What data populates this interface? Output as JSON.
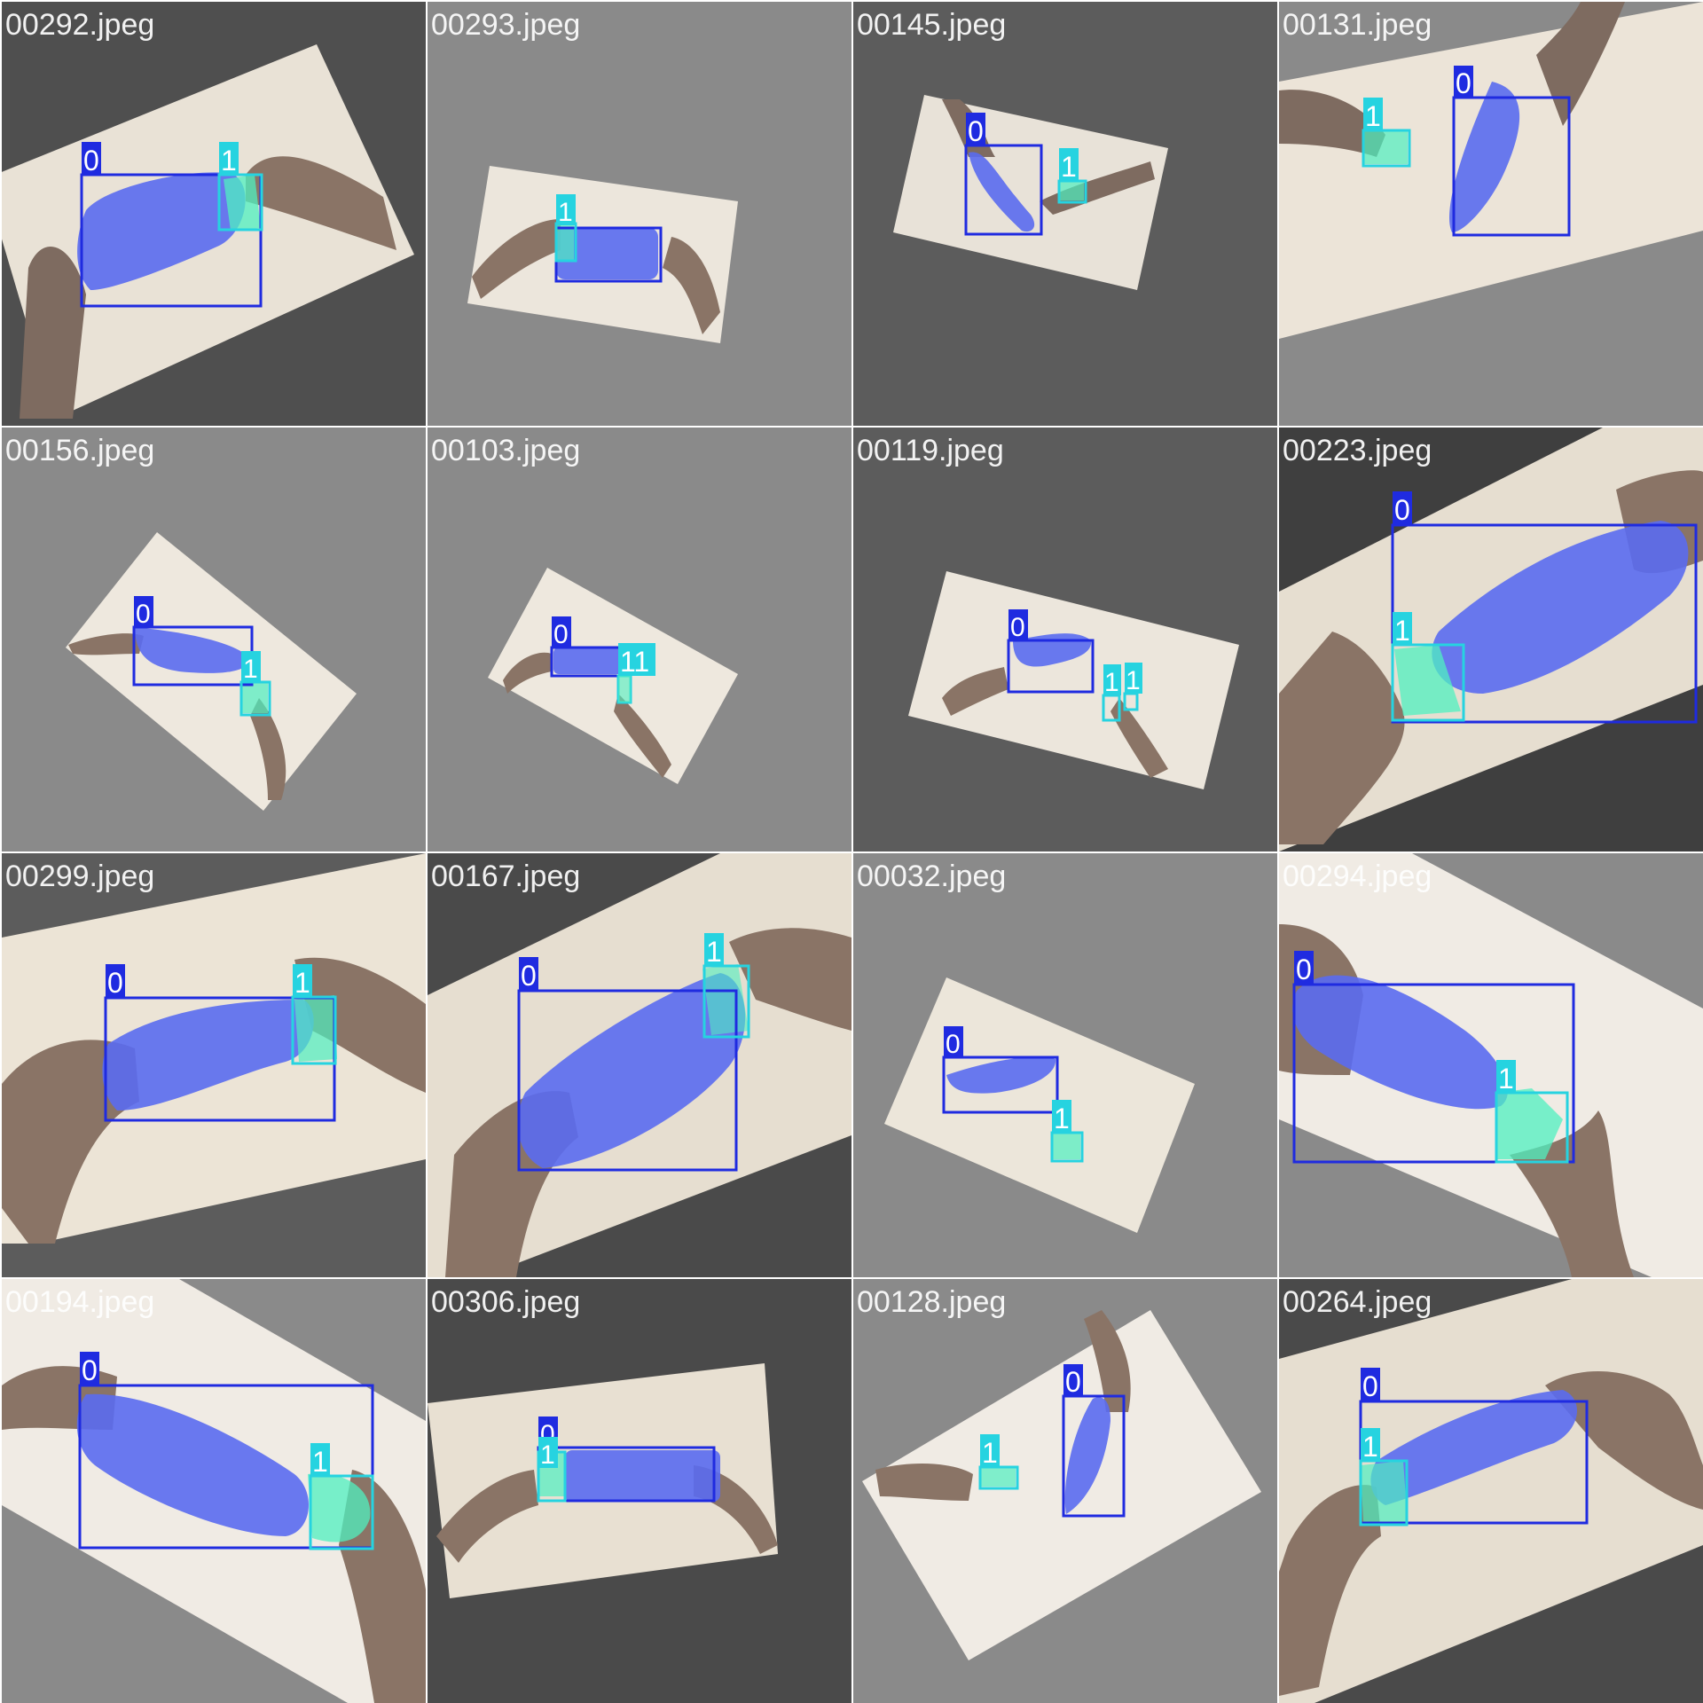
{
  "colors": {
    "class_0": "#1f2be0",
    "class_0_mask": "#5a6cf0",
    "class_1": "#26d3e0",
    "class_1_mask": "#4ff0c0",
    "table_surface": "#ece4d8",
    "skin": "#8a7466",
    "label_text": "#ffffff"
  },
  "tiles": [
    {
      "file": "00292.jpeg",
      "labels": [
        "0",
        "1"
      ]
    },
    {
      "file": "00293.jpeg",
      "labels": [
        "1"
      ]
    },
    {
      "file": "00145.jpeg",
      "labels": [
        "0",
        "1"
      ]
    },
    {
      "file": "00131.jpeg",
      "labels": [
        "1",
        "0"
      ]
    },
    {
      "file": "00156.jpeg",
      "labels": [
        "0",
        "1"
      ]
    },
    {
      "file": "00103.jpeg",
      "labels": [
        "0",
        "11"
      ]
    },
    {
      "file": "00119.jpeg",
      "labels": [
        "0",
        "1",
        "1"
      ]
    },
    {
      "file": "00223.jpeg",
      "labels": [
        "0",
        "1"
      ]
    },
    {
      "file": "00299.jpeg",
      "labels": [
        "0",
        "1"
      ]
    },
    {
      "file": "00167.jpeg",
      "labels": [
        "0",
        "1"
      ]
    },
    {
      "file": "00032.jpeg",
      "labels": [
        "0",
        "1"
      ]
    },
    {
      "file": "00294.jpeg",
      "labels": [
        "0",
        "1"
      ]
    },
    {
      "file": "00194.jpeg",
      "labels": [
        "0",
        "1"
      ]
    },
    {
      "file": "00306.jpeg",
      "labels": [
        "0",
        "1"
      ]
    },
    {
      "file": "00128.jpeg",
      "labels": [
        "1",
        "0"
      ]
    },
    {
      "file": "00264.jpeg",
      "labels": [
        "0",
        "1"
      ]
    }
  ]
}
